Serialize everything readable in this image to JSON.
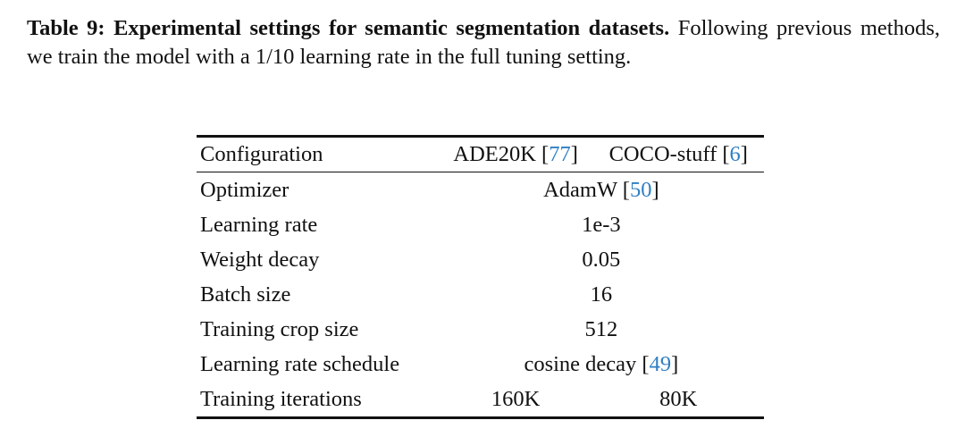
{
  "caption": {
    "label": "Table 9:",
    "title": "Experimental settings for semantic segmentation datasets.",
    "text": "Following previous methods, we train the model with a 1/10 learning rate in the full tuning setting."
  },
  "table": {
    "header": [
      {
        "text": "Configuration"
      },
      {
        "text": "ADE20K [",
        "cite": "77",
        "after": "]"
      },
      {
        "text": "COCO-stuff [",
        "cite": "6",
        "after": "]"
      }
    ],
    "rows": [
      [
        {
          "text": "Optimizer"
        },
        {
          "text": "AdamW [",
          "cite": "50",
          "after": "]"
        }
      ],
      [
        {
          "text": "Learning rate"
        },
        {
          "text": "1e-3"
        }
      ],
      [
        {
          "text": "Weight decay"
        },
        {
          "text": "0.05"
        }
      ],
      [
        {
          "text": "Batch size"
        },
        {
          "text": "16"
        }
      ],
      [
        {
          "text": "Training crop size"
        },
        {
          "text": "512"
        }
      ],
      [
        {
          "text": "Learning rate schedule"
        },
        {
          "text": "cosine decay [",
          "cite": "49",
          "after": "]"
        }
      ],
      [
        {
          "text": "Training iterations"
        },
        {
          "text": "160K"
        },
        {
          "text": "80K"
        }
      ]
    ]
  }
}
